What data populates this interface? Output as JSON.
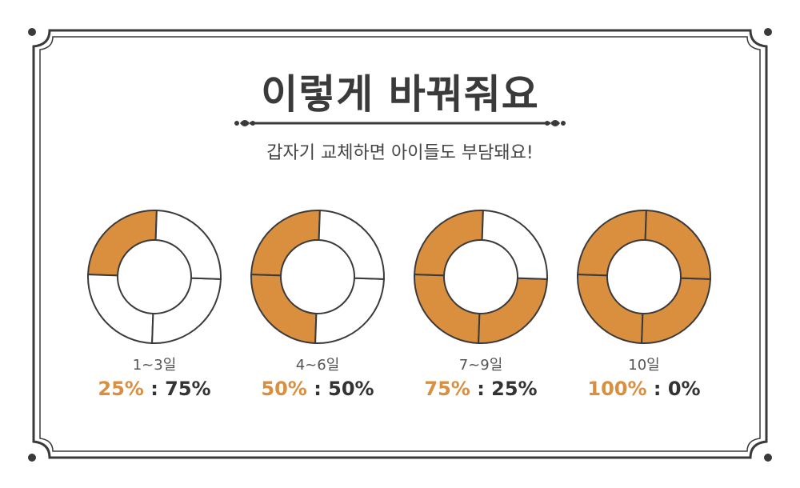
{
  "title": "이렇게 바꿔줘요",
  "subtitle": "갑자기 교체하면 아이들도 부담돼요!",
  "colors": {
    "accent": "#d98f3e",
    "stroke": "#3a3a3a",
    "empty": "#ffffff"
  },
  "schedule": [
    {
      "period": "1~3일",
      "new_label": "25%",
      "separator": " : ",
      "old_label": "75%",
      "new_fraction": 0.25
    },
    {
      "period": "4~6일",
      "new_label": "50%",
      "separator": " : ",
      "old_label": "50%",
      "new_fraction": 0.5
    },
    {
      "period": "7~9일",
      "new_label": "75%",
      "separator": " : ",
      "old_label": "25%",
      "new_fraction": 0.75
    },
    {
      "period": "10일",
      "new_label": "100%",
      "separator": " : ",
      "old_label": "0%",
      "new_fraction": 1.0
    }
  ]
}
